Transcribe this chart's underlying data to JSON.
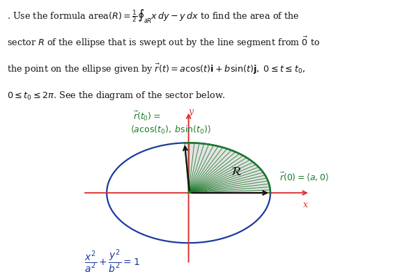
{
  "bg_color": "#ffffff",
  "ellipse_a": 1.55,
  "ellipse_b": 0.95,
  "t0": 1.62,
  "axis_color": "#d93030",
  "ellipse_color": "#1a3a9e",
  "sector_line_color": "#1a7a28",
  "sector_fill_color": "#cccccc",
  "sector_fill_alpha": 0.55,
  "text_color_green": "#1a7a28",
  "text_color_blue": "#1a3a9e",
  "text_color_black": "#111111",
  "n_sector_lines": 28,
  "figsize": [
    5.64,
    3.91
  ],
  "dpi": 100
}
